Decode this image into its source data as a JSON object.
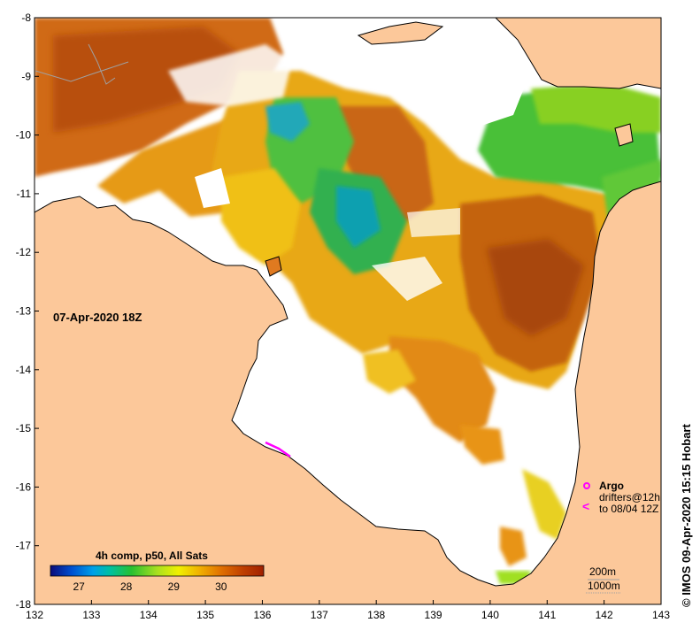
{
  "map": {
    "date_label": "07-Apr-2020 18Z",
    "credit": "© IMOS 09-Apr-2020 15:15 Hobart",
    "x_ticks": [
      "132",
      "133",
      "134",
      "135",
      "136",
      "137",
      "138",
      "139",
      "140",
      "141",
      "142",
      "143"
    ],
    "y_ticks": [
      "-8",
      "-9",
      "-10",
      "-11",
      "-12",
      "-13",
      "-14",
      "-15",
      "-16",
      "-17",
      "-18"
    ],
    "lon_range": [
      132,
      143
    ],
    "lat_range": [
      -18,
      -8
    ]
  },
  "colorbar": {
    "title": "4h comp, p50, All Sats",
    "ticks": [
      "27",
      "28",
      "29",
      "30"
    ],
    "range": [
      26.4,
      30.9
    ],
    "colors": [
      "#0b0b7a",
      "#0050d0",
      "#00a0e8",
      "#00c0a0",
      "#28c030",
      "#a8e020",
      "#f0f000",
      "#f0b000",
      "#e07000",
      "#c04000",
      "#a02000"
    ]
  },
  "legend": {
    "argo_label": "Argo",
    "drifters_label": "drifters@12h",
    "drifters_to_label": "to 08/04 12Z",
    "argo_color": "#ff00ff",
    "drifter_symbol": "<"
  },
  "contours": {
    "label_200m": "200m",
    "label_1000m": "1000m"
  },
  "colors": {
    "land": "#fcc89a",
    "no_data": "#ffffff",
    "coastline": "#000000"
  }
}
